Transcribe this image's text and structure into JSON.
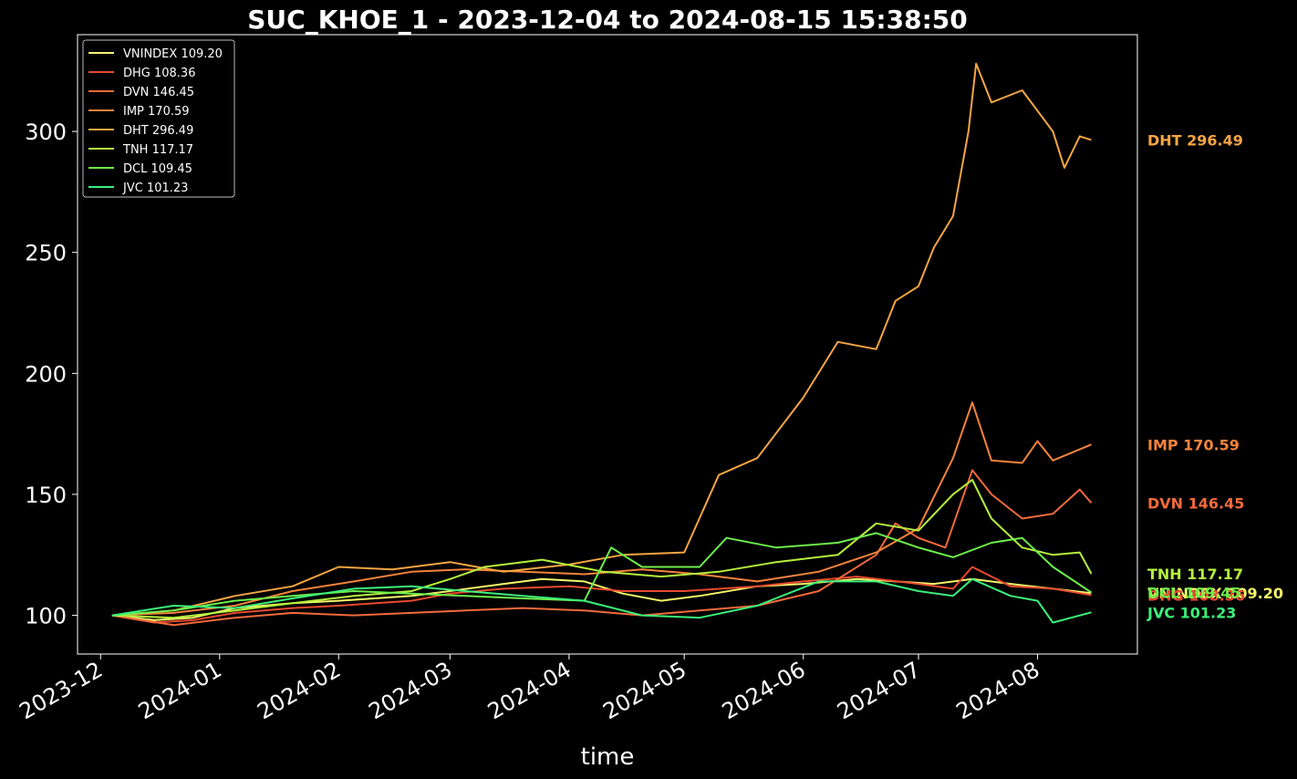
{
  "chart_data": {
    "type": "line",
    "title": "SUC_KHOE_1 - 2023-12-04 to 2024-08-15 15:38:50",
    "xlabel": "time",
    "ylabel": "",
    "x_ticks": [
      "2023-12",
      "2024-01",
      "2024-02",
      "2024-03",
      "2024-04",
      "2024-05",
      "2024-06",
      "2024-07",
      "2024-08"
    ],
    "y_ticks": [
      100,
      150,
      200,
      250,
      300
    ],
    "xlim": [
      "2023-11-25",
      "2024-08-27"
    ],
    "ylim": [
      84,
      340
    ],
    "grid": false,
    "legend_position": "upper-left",
    "series": [
      {
        "name": "VNINDEX",
        "legend": "VNINDEX 109.20",
        "end_label": "VNINDEX 109.20",
        "color": "#f5f56a",
        "points": [
          [
            "2023-12-04",
            100
          ],
          [
            "2023-12-15",
            98
          ],
          [
            "2023-12-25",
            99
          ],
          [
            "2024-01-05",
            103
          ],
          [
            "2024-01-20",
            105
          ],
          [
            "2024-02-01",
            106
          ],
          [
            "2024-02-20",
            108
          ],
          [
            "2024-03-01",
            110
          ],
          [
            "2024-03-15",
            113
          ],
          [
            "2024-03-25",
            115
          ],
          [
            "2024-04-05",
            114
          ],
          [
            "2024-04-15",
            109
          ],
          [
            "2024-04-25",
            106
          ],
          [
            "2024-05-05",
            108
          ],
          [
            "2024-05-20",
            112
          ],
          [
            "2024-06-01",
            113
          ],
          [
            "2024-06-15",
            115
          ],
          [
            "2024-06-25",
            114
          ],
          [
            "2024-07-05",
            113
          ],
          [
            "2024-07-15",
            115
          ],
          [
            "2024-07-25",
            113
          ],
          [
            "2024-08-05",
            111
          ],
          [
            "2024-08-15",
            109.2
          ]
        ]
      },
      {
        "name": "DHG",
        "legend": "DHG 108.36",
        "end_label": "DHG 108.36",
        "color": "#e84a2e",
        "points": [
          [
            "2023-12-04",
            100
          ],
          [
            "2023-12-15",
            97
          ],
          [
            "2023-12-25",
            98
          ],
          [
            "2024-01-05",
            101
          ],
          [
            "2024-01-20",
            103
          ],
          [
            "2024-02-01",
            104
          ],
          [
            "2024-02-20",
            106
          ],
          [
            "2024-03-01",
            109
          ],
          [
            "2024-03-15",
            111
          ],
          [
            "2024-04-01",
            112
          ],
          [
            "2024-04-15",
            110
          ],
          [
            "2024-05-01",
            110
          ],
          [
            "2024-05-20",
            112
          ],
          [
            "2024-06-01",
            114
          ],
          [
            "2024-06-15",
            116
          ],
          [
            "2024-07-01",
            113
          ],
          [
            "2024-07-10",
            111
          ],
          [
            "2024-07-15",
            120
          ],
          [
            "2024-07-25",
            112
          ],
          [
            "2024-08-05",
            111
          ],
          [
            "2024-08-15",
            108.36
          ]
        ]
      },
      {
        "name": "DVN",
        "legend": "DVN 146.45",
        "end_label": "DVN 146.45",
        "color": "#f26a3c",
        "points": [
          [
            "2023-12-04",
            100
          ],
          [
            "2023-12-20",
            96
          ],
          [
            "2024-01-05",
            99
          ],
          [
            "2024-01-20",
            101
          ],
          [
            "2024-02-05",
            100
          ],
          [
            "2024-02-20",
            101
          ],
          [
            "2024-03-05",
            102
          ],
          [
            "2024-03-20",
            103
          ],
          [
            "2024-04-05",
            102
          ],
          [
            "2024-04-20",
            100
          ],
          [
            "2024-05-05",
            102
          ],
          [
            "2024-05-20",
            104
          ],
          [
            "2024-06-05",
            110
          ],
          [
            "2024-06-20",
            125
          ],
          [
            "2024-06-25",
            138
          ],
          [
            "2024-07-01",
            132
          ],
          [
            "2024-07-08",
            128
          ],
          [
            "2024-07-15",
            160
          ],
          [
            "2024-07-20",
            150
          ],
          [
            "2024-07-28",
            140
          ],
          [
            "2024-08-05",
            142
          ],
          [
            "2024-08-12",
            152
          ],
          [
            "2024-08-15",
            146.45
          ]
        ]
      },
      {
        "name": "IMP",
        "legend": "IMP 170.59",
        "end_label": "IMP 170.59",
        "color": "#f5843c",
        "points": [
          [
            "2023-12-04",
            100
          ],
          [
            "2023-12-20",
            101
          ],
          [
            "2024-01-05",
            104
          ],
          [
            "2024-01-20",
            110
          ],
          [
            "2024-02-05",
            114
          ],
          [
            "2024-02-20",
            118
          ],
          [
            "2024-03-05",
            119
          ],
          [
            "2024-03-20",
            118
          ],
          [
            "2024-04-05",
            117
          ],
          [
            "2024-04-20",
            119
          ],
          [
            "2024-05-05",
            117
          ],
          [
            "2024-05-20",
            114
          ],
          [
            "2024-06-05",
            118
          ],
          [
            "2024-06-20",
            126
          ],
          [
            "2024-07-01",
            136
          ],
          [
            "2024-07-10",
            165
          ],
          [
            "2024-07-15",
            188
          ],
          [
            "2024-07-20",
            164
          ],
          [
            "2024-07-28",
            163
          ],
          [
            "2024-08-01",
            172
          ],
          [
            "2024-08-05",
            164
          ],
          [
            "2024-08-15",
            170.59
          ]
        ]
      },
      {
        "name": "DHT",
        "legend": "DHT 296.49",
        "end_label": "DHT 296.49",
        "color": "#f5a542",
        "points": [
          [
            "2023-12-04",
            100
          ],
          [
            "2023-12-20",
            102
          ],
          [
            "2024-01-05",
            108
          ],
          [
            "2024-01-20",
            112
          ],
          [
            "2024-02-01",
            120
          ],
          [
            "2024-02-15",
            119
          ],
          [
            "2024-03-01",
            122
          ],
          [
            "2024-03-15",
            118
          ],
          [
            "2024-04-01",
            121
          ],
          [
            "2024-04-15",
            125
          ],
          [
            "2024-05-01",
            126
          ],
          [
            "2024-05-10",
            158
          ],
          [
            "2024-05-20",
            165
          ],
          [
            "2024-06-01",
            190
          ],
          [
            "2024-06-10",
            213
          ],
          [
            "2024-06-20",
            210
          ],
          [
            "2024-06-25",
            230
          ],
          [
            "2024-07-01",
            236
          ],
          [
            "2024-07-05",
            252
          ],
          [
            "2024-07-10",
            265
          ],
          [
            "2024-07-14",
            300
          ],
          [
            "2024-07-16",
            328
          ],
          [
            "2024-07-20",
            312
          ],
          [
            "2024-07-28",
            317
          ],
          [
            "2024-08-05",
            300
          ],
          [
            "2024-08-08",
            285
          ],
          [
            "2024-08-12",
            298
          ],
          [
            "2024-08-15",
            296.49
          ]
        ]
      },
      {
        "name": "TNH",
        "legend": "TNH 117.17",
        "end_label": "TNH 117.17",
        "color": "#b5f03c",
        "points": [
          [
            "2023-12-04",
            100
          ],
          [
            "2023-12-20",
            99
          ],
          [
            "2024-01-05",
            102
          ],
          [
            "2024-01-20",
            105
          ],
          [
            "2024-02-05",
            108
          ],
          [
            "2024-02-20",
            110
          ],
          [
            "2024-03-01",
            115
          ],
          [
            "2024-03-10",
            120
          ],
          [
            "2024-03-25",
            123
          ],
          [
            "2024-04-10",
            118
          ],
          [
            "2024-04-25",
            116
          ],
          [
            "2024-05-10",
            118
          ],
          [
            "2024-05-25",
            122
          ],
          [
            "2024-06-10",
            125
          ],
          [
            "2024-06-20",
            138
          ],
          [
            "2024-07-01",
            135
          ],
          [
            "2024-07-10",
            150
          ],
          [
            "2024-07-15",
            156
          ],
          [
            "2024-07-20",
            140
          ],
          [
            "2024-07-28",
            128
          ],
          [
            "2024-08-05",
            125
          ],
          [
            "2024-08-12",
            126
          ],
          [
            "2024-08-15",
            117.17
          ]
        ]
      },
      {
        "name": "DCL",
        "legend": "DCL 109.45",
        "end_label": "DCL 109.45",
        "color": "#6cf04a",
        "points": [
          [
            "2023-12-04",
            100
          ],
          [
            "2023-12-20",
            102
          ],
          [
            "2024-01-05",
            106
          ],
          [
            "2024-01-20",
            108
          ],
          [
            "2024-02-05",
            110
          ],
          [
            "2024-02-20",
            109
          ],
          [
            "2024-03-05",
            108
          ],
          [
            "2024-03-20",
            107
          ],
          [
            "2024-04-05",
            106
          ],
          [
            "2024-04-12",
            128
          ],
          [
            "2024-04-20",
            120
          ],
          [
            "2024-05-05",
            120
          ],
          [
            "2024-05-12",
            132
          ],
          [
            "2024-05-25",
            128
          ],
          [
            "2024-06-10",
            130
          ],
          [
            "2024-06-20",
            134
          ],
          [
            "2024-07-01",
            128
          ],
          [
            "2024-07-10",
            124
          ],
          [
            "2024-07-20",
            130
          ],
          [
            "2024-07-28",
            132
          ],
          [
            "2024-08-05",
            120
          ],
          [
            "2024-08-15",
            109.45
          ]
        ]
      },
      {
        "name": "JVC",
        "legend": "JVC 101.23",
        "end_label": "JVC 101.23",
        "color": "#3cf07a",
        "points": [
          [
            "2023-12-04",
            100
          ],
          [
            "2023-12-20",
            104
          ],
          [
            "2024-01-05",
            103
          ],
          [
            "2024-01-20",
            107
          ],
          [
            "2024-02-05",
            111
          ],
          [
            "2024-02-20",
            112
          ],
          [
            "2024-03-05",
            110
          ],
          [
            "2024-03-20",
            108
          ],
          [
            "2024-04-05",
            106
          ],
          [
            "2024-04-20",
            100
          ],
          [
            "2024-05-05",
            99
          ],
          [
            "2024-05-20",
            104
          ],
          [
            "2024-06-05",
            114
          ],
          [
            "2024-06-20",
            114
          ],
          [
            "2024-07-01",
            110
          ],
          [
            "2024-07-10",
            108
          ],
          [
            "2024-07-15",
            115
          ],
          [
            "2024-07-25",
            108
          ],
          [
            "2024-08-01",
            106
          ],
          [
            "2024-08-05",
            97
          ],
          [
            "2024-08-15",
            101.23
          ]
        ]
      }
    ]
  }
}
